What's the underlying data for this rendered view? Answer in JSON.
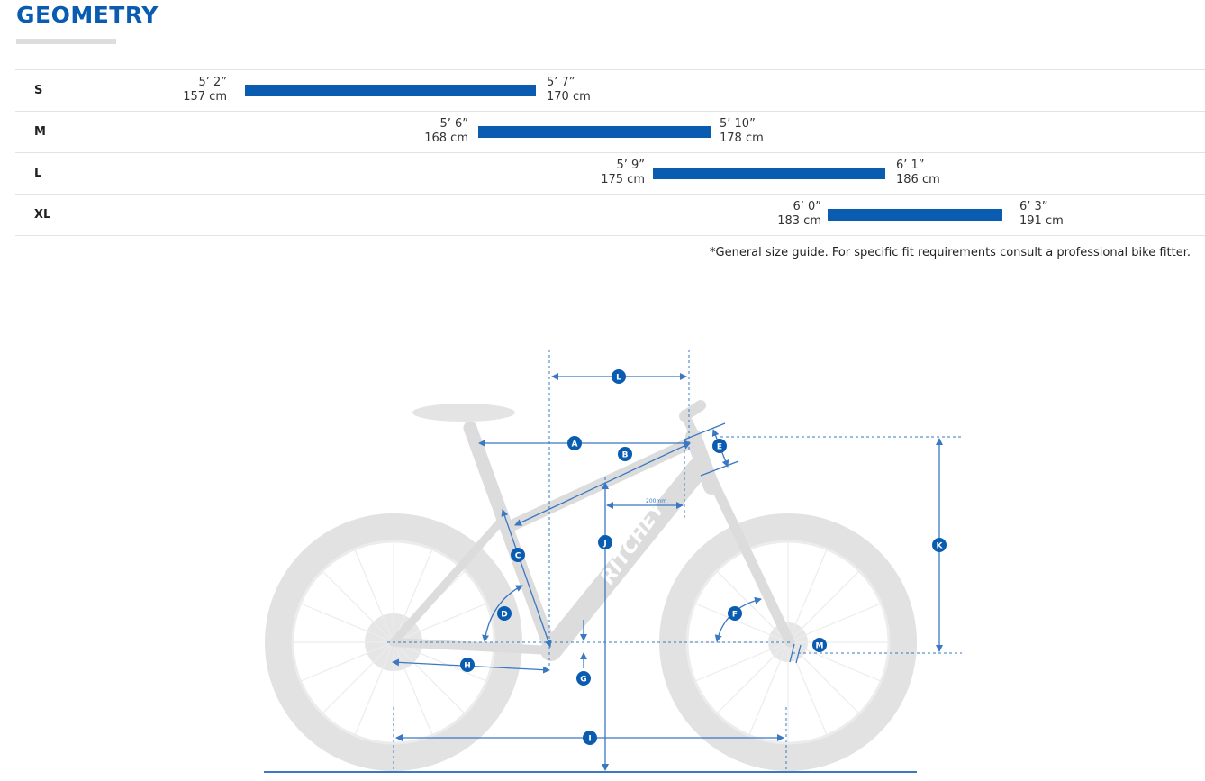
{
  "header": {
    "title": "GEOMETRY"
  },
  "size_guide": {
    "rows": [
      {
        "size": "S",
        "min_ft": "5’ 2”",
        "min_cm": "157 cm",
        "max_ft": "5’ 7”",
        "max_cm": "170 cm",
        "min_cm_value": 157,
        "max_cm_value": 170
      },
      {
        "size": "M",
        "min_ft": "5’ 6”",
        "min_cm": "168 cm",
        "max_ft": "5’ 10”",
        "max_cm": "178 cm",
        "min_cm_value": 168,
        "max_cm_value": 178
      },
      {
        "size": "L",
        "min_ft": "5’ 9”",
        "min_cm": "175 cm",
        "max_ft": "6’ 1”",
        "max_cm": "186 cm",
        "min_cm_value": 175,
        "max_cm_value": 186
      },
      {
        "size": "XL",
        "min_ft": "6’ 0”",
        "min_cm": "183 cm",
        "max_ft": "6’ 3”",
        "max_cm": "191 cm",
        "min_cm_value": 183,
        "max_cm_value": 191
      }
    ],
    "note": "*General size guide. For specific fit requirements consult a professional bike fitter."
  },
  "diagram": {
    "brand_text": "RITCHEY",
    "scale_label": "200mm",
    "markers": [
      "A",
      "B",
      "C",
      "D",
      "E",
      "F",
      "G",
      "H",
      "I",
      "J",
      "K",
      "L",
      "M"
    ],
    "colors": {
      "accent": "#0a5cb0",
      "frame": "#dcdcdc",
      "dim": "#3a78c2"
    }
  }
}
